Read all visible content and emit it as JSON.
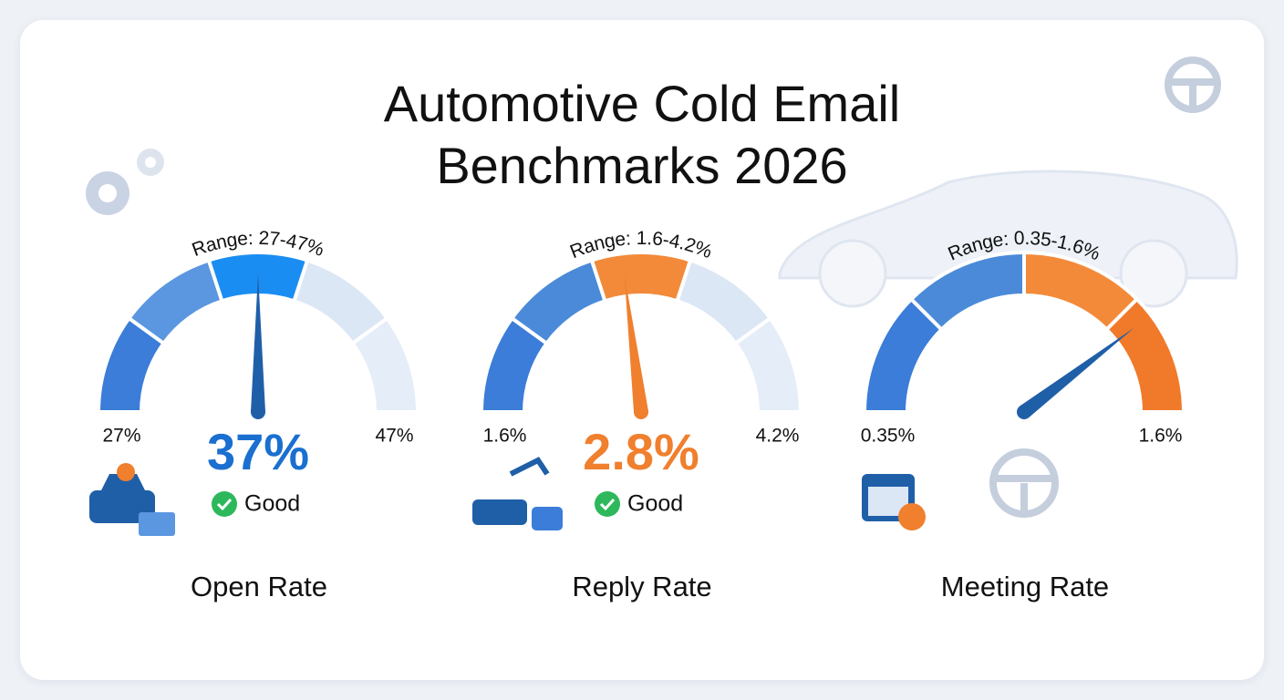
{
  "title": "Automotive Cold Email Benchmarks 2026",
  "chart_data": [
    {
      "type": "gauge",
      "title": "Open Rate",
      "subtitle": "Range: 27-47%",
      "ylim": [
        27,
        47
      ],
      "yticks": [
        {
          "value": 27,
          "label": "27%"
        },
        {
          "value": 47,
          "label": "47%"
        }
      ],
      "value": 37,
      "value_label": "37%",
      "status": "Good",
      "segment_colors": [
        "#3b7dd8",
        "#5b96e0",
        "#1a8df2",
        "#dce7f5",
        "#e5edf8"
      ],
      "needle_color": "#1f5fa8",
      "value_color": "#1a6fd0"
    },
    {
      "type": "gauge",
      "title": "Reply Rate",
      "subtitle": "Range: 1.6-4.2%",
      "ylim": [
        1.6,
        4.2
      ],
      "yticks": [
        {
          "value": 1.6,
          "label": "1.6%"
        },
        {
          "value": 4.2,
          "label": "4.2%"
        }
      ],
      "value": 2.8,
      "value_label": "2.8%",
      "status": "Good",
      "segment_colors": [
        "#3b7dd8",
        "#4a8ad9",
        "#f28a3a",
        "#dce7f5",
        "#e5edf8"
      ],
      "needle_color": "#f07f2e",
      "value_color": "#f07f2e"
    },
    {
      "type": "gauge",
      "title": "Meeting Rate",
      "subtitle": "Range: 0.35-1.6%",
      "ylim": [
        0.35,
        1.6
      ],
      "yticks": [
        {
          "value": 0.35,
          "label": "0.35%"
        },
        {
          "value": 1.6,
          "label": "1.6%"
        }
      ],
      "value": 1.34,
      "segment_colors": [
        "#3b7dd8",
        "#4a8ad9",
        "#f28a3a",
        "#f07a2a"
      ],
      "needle_color": "#1f5fa8"
    }
  ]
}
